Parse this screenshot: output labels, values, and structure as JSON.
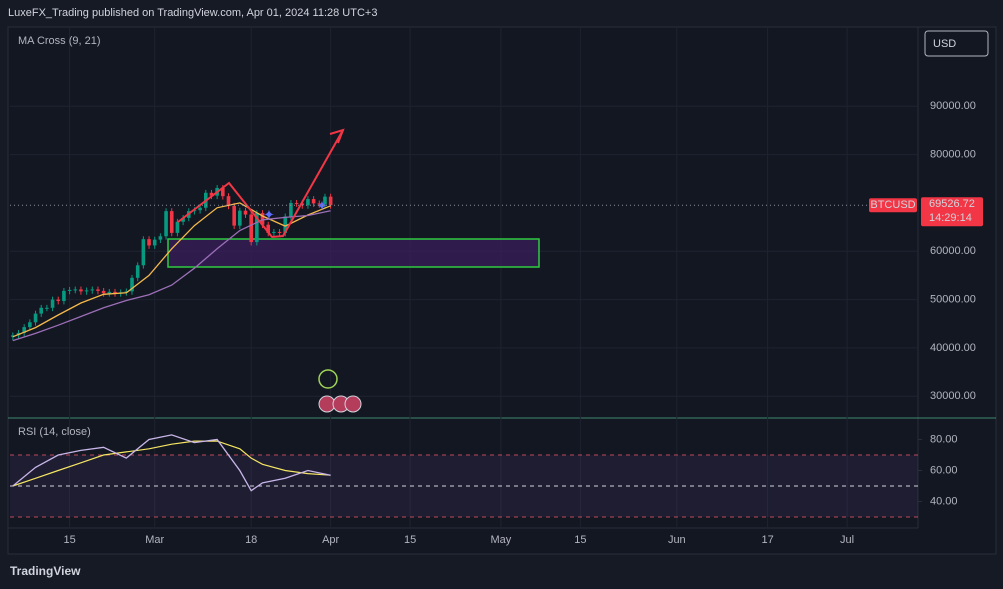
{
  "chart_data": {
    "type": "candlestick",
    "title": "LuxeFX_Trading published on TradingView.com, Apr 01, 2024 11:28 UTC+3",
    "indicator_label": "MA Cross (9, 21)",
    "currency": "USD",
    "symbol": "BTCUSD",
    "last_price": 69526.72,
    "countdown": "14:29:14",
    "footer": "TradingView",
    "up_color": "#089981",
    "down_color": "#f23645",
    "grid": true,
    "xlim": [
      -0.5,
      159.5
    ],
    "xticks": [
      {
        "value": 10,
        "label": "15"
      },
      {
        "value": 25,
        "label": "Mar"
      },
      {
        "value": 42,
        "label": "18"
      },
      {
        "value": 56,
        "label": "Apr"
      },
      {
        "value": 70,
        "label": "15"
      },
      {
        "value": 86,
        "label": "May"
      },
      {
        "value": 100,
        "label": "15"
      },
      {
        "value": 117,
        "label": "Jun"
      },
      {
        "value": 133,
        "label": "17"
      },
      {
        "value": 147,
        "label": "Jul"
      }
    ],
    "ylim": [
      25700,
      106200
    ],
    "yticks": [
      {
        "value": 90000,
        "label": "90000.00"
      },
      {
        "value": 80000,
        "label": "80000.00"
      },
      {
        "value": 60000,
        "label": "60000.00"
      },
      {
        "value": 50000,
        "label": "50000.00"
      },
      {
        "value": 40000,
        "label": "40000.00"
      },
      {
        "value": 30000,
        "label": "30000.00"
      }
    ],
    "open": [
      42300,
      42600,
      43100,
      44300,
      45300,
      47100,
      48300,
      48300,
      50000,
      49700,
      51800,
      52000,
      52100,
      51700,
      51900,
      52100,
      51800,
      51300,
      51600,
      51300,
      51500,
      51700,
      54500,
      57100,
      62500,
      61200,
      62400,
      63100,
      68300,
      63800,
      66100,
      66900,
      68300,
      68500,
      69000,
      72100,
      71500,
      73100,
      71400,
      69400,
      65300,
      68400,
      67600,
      61900,
      67900,
      65500,
      63800,
      64000,
      63800,
      67200,
      70000,
      69900,
      69500,
      70800,
      69900,
      69700,
      71300
    ],
    "high": [
      43200,
      43700,
      44900,
      45900,
      47700,
      48900,
      48900,
      50600,
      50600,
      52400,
      52600,
      52700,
      52700,
      52500,
      52700,
      52700,
      52400,
      52200,
      52200,
      52100,
      52300,
      55100,
      57700,
      63100,
      63100,
      63000,
      63700,
      68900,
      68900,
      66700,
      67500,
      68900,
      69100,
      69600,
      72700,
      72700,
      73700,
      73700,
      72000,
      70000,
      69000,
      69000,
      68200,
      68500,
      68500,
      66100,
      64600,
      64600,
      67800,
      70600,
      70600,
      70500,
      71400,
      71400,
      70500,
      71900,
      71900
    ],
    "low": [
      41600,
      41900,
      42400,
      43600,
      44600,
      46400,
      47600,
      47600,
      49000,
      49000,
      51100,
      51300,
      51000,
      51000,
      51200,
      51100,
      50600,
      50600,
      50600,
      50600,
      50800,
      51000,
      53800,
      56400,
      60500,
      60500,
      61700,
      62400,
      63100,
      63100,
      65400,
      66200,
      67600,
      67800,
      68300,
      70800,
      70800,
      70700,
      68700,
      64600,
      64600,
      66900,
      61200,
      61200,
      64800,
      63100,
      63100,
      63100,
      63100,
      66500,
      69200,
      68800,
      68800,
      69200,
      69000,
      69000,
      68800
    ],
    "close": [
      42600,
      43100,
      44300,
      45300,
      47100,
      48300,
      48300,
      50000,
      49700,
      51800,
      52000,
      52100,
      51700,
      51900,
      52100,
      51800,
      51300,
      51600,
      51300,
      51500,
      51700,
      54500,
      57100,
      62500,
      61200,
      62400,
      63100,
      68300,
      63800,
      66100,
      66900,
      68300,
      68500,
      69000,
      72100,
      71500,
      73100,
      71400,
      69400,
      65300,
      68400,
      67600,
      61900,
      67900,
      65500,
      63800,
      64000,
      63800,
      67200,
      70000,
      69900,
      69500,
      70800,
      69900,
      69700,
      71300,
      69526.72
    ],
    "ma_lines": [
      {
        "color": "#f5b94a",
        "x": [
          0,
          4,
          8,
          12,
          16,
          20,
          24,
          28,
          32,
          36,
          40,
          44,
          48,
          52,
          56
        ],
        "values": [
          42300,
          44200,
          46800,
          49300,
          51100,
          51400,
          55000,
          60500,
          65300,
          69000,
          70000,
          67300,
          65200,
          67500,
          69400
        ]
      },
      {
        "color": "#9c6fb8",
        "x": [
          0,
          4,
          8,
          12,
          16,
          20,
          24,
          28,
          32,
          36,
          40,
          44,
          48,
          52,
          56
        ],
        "values": [
          41500,
          43000,
          44700,
          46500,
          48300,
          49800,
          51000,
          53000,
          56500,
          60500,
          64300,
          66500,
          67000,
          67400,
          68400
        ]
      }
    ],
    "rsi": {
      "title": "RSI (14, close)",
      "ylim": [
        22.9,
        92.6
      ],
      "yticks": [
        {
          "value": 80,
          "label": "80.00"
        },
        {
          "value": 60,
          "label": "60.00"
        },
        {
          "value": 40,
          "label": "40.00"
        }
      ],
      "bands": [
        70,
        50,
        30
      ],
      "x": [
        0,
        4,
        8,
        12,
        16,
        20,
        24,
        28,
        32,
        36,
        40,
        42,
        44,
        48,
        52,
        56
      ],
      "values": [
        50,
        62,
        70,
        73,
        75,
        68,
        80,
        83,
        78,
        80,
        60,
        47,
        52,
        55,
        60,
        57
      ],
      "color": "#c8b6e8",
      "ma_values": [
        50,
        55,
        60,
        65,
        70,
        72,
        74,
        77,
        79,
        79,
        74,
        68,
        64,
        60,
        58,
        57
      ],
      "ma_color": "#f5e663"
    }
  }
}
